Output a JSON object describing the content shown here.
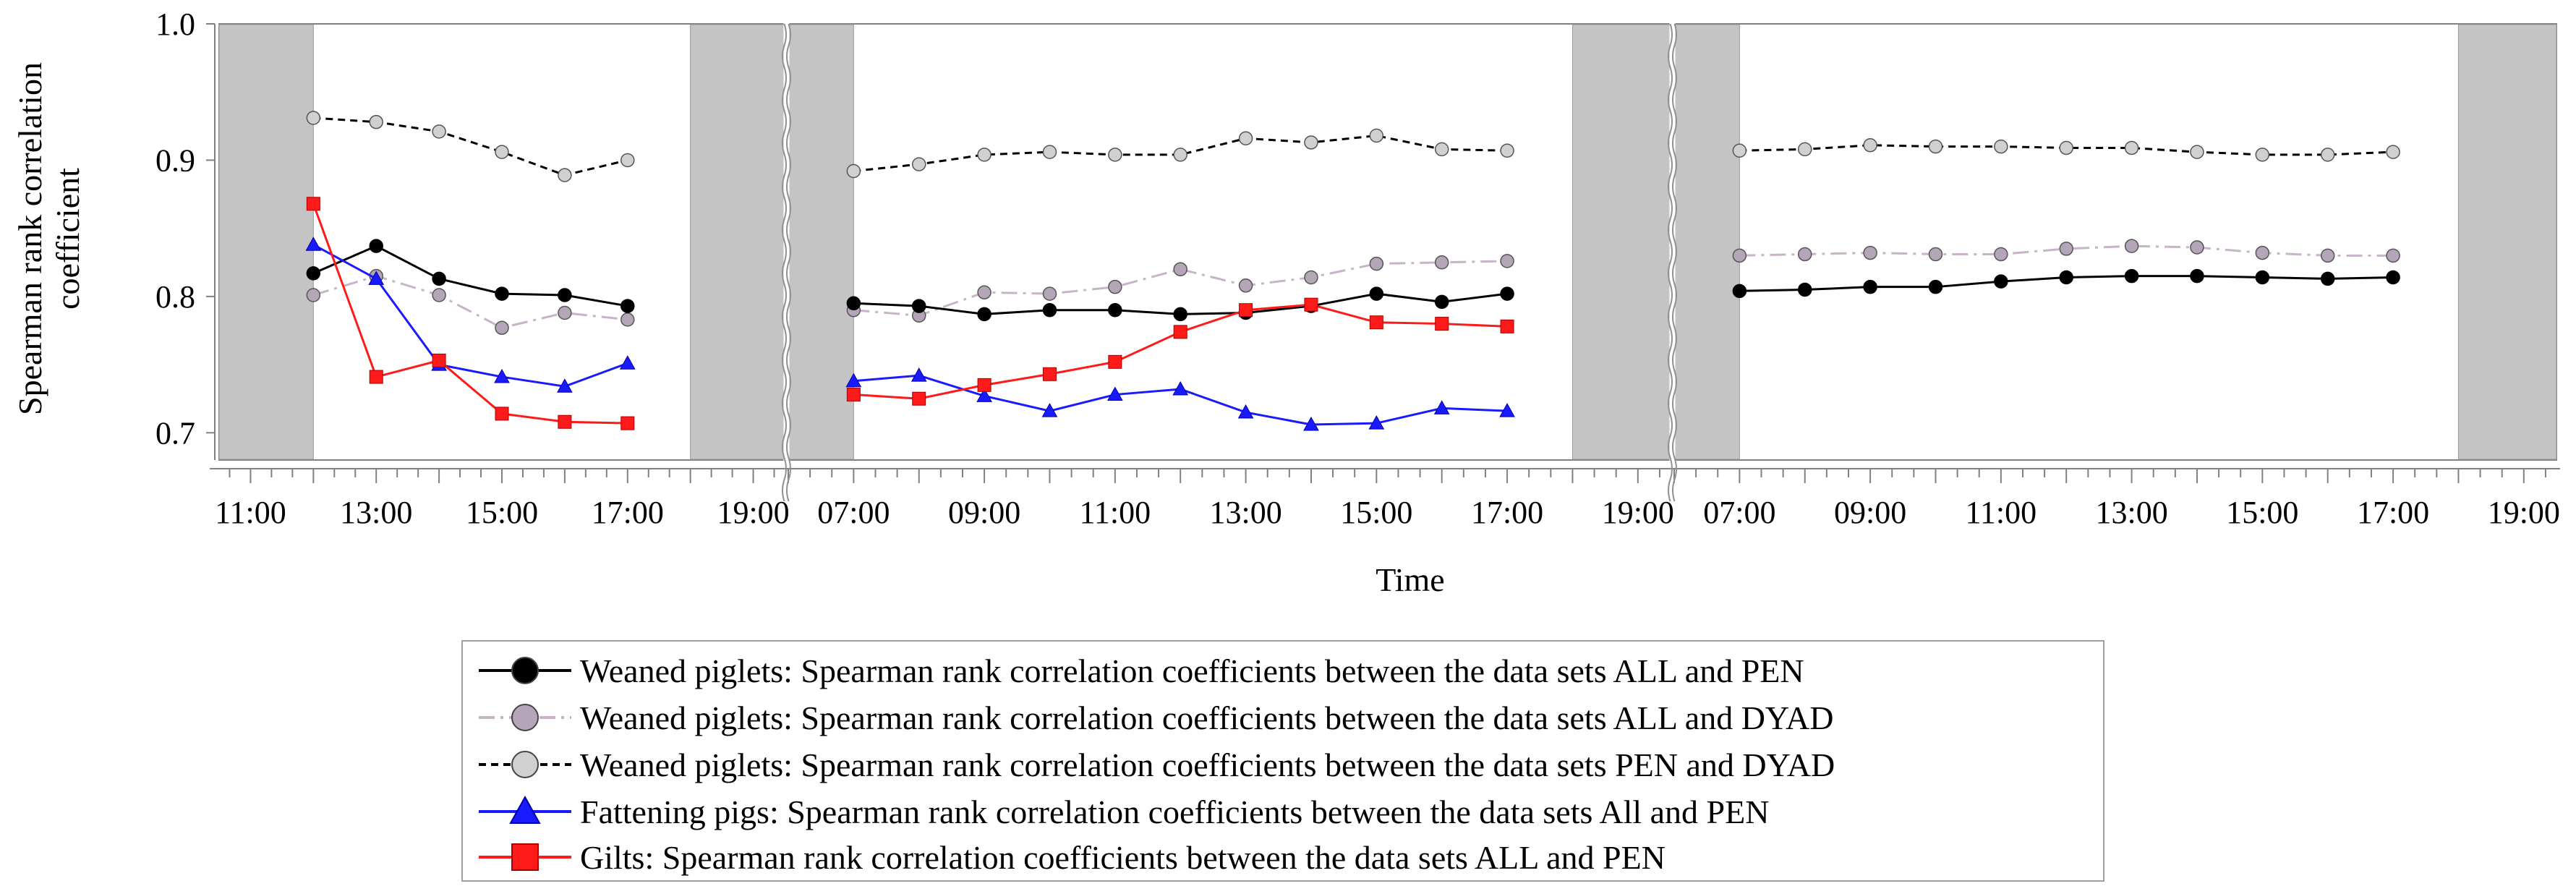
{
  "chart_data": {
    "type": "line",
    "ylabel": [
      "Spearman rank correlation",
      "coefficient"
    ],
    "xlabel": "Time",
    "ylim": [
      0.68,
      1.0
    ],
    "yticks": [
      "0.7",
      "0.8",
      "0.9",
      "1.0"
    ],
    "panels": [
      {
        "x_range_hours": [
          10.5,
          19.5
        ],
        "dark_periods": [
          [
            10.5,
            12.0
          ],
          [
            18.0,
            19.5
          ]
        ],
        "tick_labels": [
          "11:00",
          "13:00",
          "15:00",
          "17:00",
          "19:00"
        ],
        "series": [
          {
            "key": "pen_dyad",
            "x": [
              "12:00",
              "13:00",
              "14:00",
              "15:00",
              "16:00",
              "17:00"
            ],
            "values": [
              0.931,
              0.928,
              0.921,
              0.906,
              0.889,
              0.9
            ]
          },
          {
            "key": "all_dyad",
            "x": [
              "12:00",
              "13:00",
              "14:00",
              "15:00",
              "16:00",
              "17:00"
            ],
            "values": [
              0.801,
              0.815,
              0.801,
              0.777,
              0.788,
              0.783
            ]
          },
          {
            "key": "all_pen",
            "x": [
              "12:00",
              "13:00",
              "14:00",
              "15:00",
              "16:00",
              "17:00"
            ],
            "values": [
              0.817,
              0.837,
              0.813,
              0.802,
              0.801,
              0.793
            ]
          },
          {
            "key": "fattening",
            "x": [
              "12:00",
              "13:00",
              "14:00",
              "15:00",
              "16:00",
              "17:00"
            ],
            "values": [
              0.838,
              0.813,
              0.75,
              0.741,
              0.734,
              0.751
            ]
          },
          {
            "key": "gilts",
            "x": [
              "12:00",
              "13:00",
              "14:00",
              "15:00",
              "16:00",
              "17:00"
            ],
            "values": [
              0.868,
              0.741,
              0.753,
              0.714,
              0.708,
              0.707
            ]
          }
        ]
      },
      {
        "x_range_hours": [
          6.0,
          19.5
        ],
        "dark_periods": [
          [
            6.0,
            7.0
          ],
          [
            18.0,
            19.5
          ]
        ],
        "tick_labels": [
          "07:00",
          "09:00",
          "11:00",
          "13:00",
          "15:00",
          "17:00",
          "19:00"
        ],
        "series": [
          {
            "key": "pen_dyad",
            "x": [
              "07:00",
              "08:00",
              "09:00",
              "10:00",
              "11:00",
              "12:00",
              "13:00",
              "14:00",
              "15:00",
              "16:00",
              "17:00"
            ],
            "values": [
              0.892,
              0.897,
              0.904,
              0.906,
              0.904,
              0.904,
              0.916,
              0.913,
              0.918,
              0.908,
              0.907
            ]
          },
          {
            "key": "all_dyad",
            "x": [
              "07:00",
              "08:00",
              "09:00",
              "10:00",
              "11:00",
              "12:00",
              "13:00",
              "14:00",
              "15:00",
              "16:00",
              "17:00"
            ],
            "values": [
              0.79,
              0.786,
              0.803,
              0.802,
              0.807,
              0.82,
              0.808,
              0.814,
              0.824,
              0.825,
              0.826
            ]
          },
          {
            "key": "all_pen",
            "x": [
              "07:00",
              "08:00",
              "09:00",
              "10:00",
              "11:00",
              "12:00",
              "13:00",
              "14:00",
              "15:00",
              "16:00",
              "17:00"
            ],
            "values": [
              0.795,
              0.793,
              0.787,
              0.79,
              0.79,
              0.787,
              0.788,
              0.793,
              0.802,
              0.796,
              0.802
            ]
          },
          {
            "key": "fattening",
            "x": [
              "07:00",
              "08:00",
              "09:00",
              "10:00",
              "11:00",
              "12:00",
              "13:00",
              "14:00",
              "15:00",
              "16:00",
              "17:00"
            ],
            "values": [
              0.738,
              0.742,
              0.727,
              0.716,
              0.728,
              0.732,
              0.715,
              0.706,
              0.707,
              0.718,
              0.716
            ]
          },
          {
            "key": "gilts",
            "x": [
              "07:00",
              "08:00",
              "09:00",
              "10:00",
              "11:00",
              "12:00",
              "13:00",
              "14:00",
              "15:00",
              "16:00",
              "17:00"
            ],
            "values": [
              0.728,
              0.725,
              0.735,
              0.743,
              0.752,
              0.774,
              0.79,
              0.794,
              0.781,
              0.78,
              0.778
            ]
          }
        ]
      },
      {
        "x_range_hours": [
          6.0,
          19.5
        ],
        "dark_periods": [
          [
            6.0,
            7.0
          ],
          [
            18.0,
            19.5
          ]
        ],
        "tick_labels": [
          "07:00",
          "09:00",
          "11:00",
          "13:00",
          "15:00",
          "17:00",
          "19:00"
        ],
        "series": [
          {
            "key": "pen_dyad",
            "x": [
              "07:00",
              "08:00",
              "09:00",
              "10:00",
              "11:00",
              "12:00",
              "13:00",
              "14:00",
              "15:00",
              "16:00",
              "17:00"
            ],
            "values": [
              0.907,
              0.908,
              0.911,
              0.91,
              0.91,
              0.909,
              0.909,
              0.906,
              0.904,
              0.904,
              0.906
            ]
          },
          {
            "key": "all_dyad",
            "x": [
              "07:00",
              "08:00",
              "09:00",
              "10:00",
              "11:00",
              "12:00",
              "13:00",
              "14:00",
              "15:00",
              "16:00",
              "17:00"
            ],
            "values": [
              0.83,
              0.831,
              0.832,
              0.831,
              0.831,
              0.835,
              0.837,
              0.836,
              0.832,
              0.83,
              0.83
            ]
          },
          {
            "key": "all_pen",
            "x": [
              "07:00",
              "08:00",
              "09:00",
              "10:00",
              "11:00",
              "12:00",
              "13:00",
              "14:00",
              "15:00",
              "16:00",
              "17:00"
            ],
            "values": [
              0.804,
              0.805,
              0.807,
              0.807,
              0.811,
              0.814,
              0.815,
              0.815,
              0.814,
              0.813,
              0.814
            ]
          }
        ]
      }
    ],
    "legend": [
      {
        "key": "all_pen",
        "label": "Weaned piglets: Spearman rank correlation coefficients between the data sets ALL and PEN",
        "color": "#000000",
        "marker": "circle",
        "marker_fill": "#000000",
        "line_style": "solid"
      },
      {
        "key": "all_dyad",
        "label": "Weaned piglets: Spearman rank correlation coefficients between the data sets ALL and DYAD",
        "color": "#c8b4c8",
        "marker": "circle",
        "marker_fill": "#b4a5b9",
        "line_style": "dash-dot"
      },
      {
        "key": "pen_dyad",
        "label": "Weaned piglets: Spearman rank correlation coefficients between the data sets PEN and DYAD",
        "color": "#000000",
        "marker": "circle",
        "marker_fill": "#d0d0d0",
        "line_style": "dashed"
      },
      {
        "key": "fattening",
        "label": "Fattening pigs: Spearman rank correlation coefficients between the data sets All and PEN",
        "color": "#1a1aff",
        "marker": "triangle",
        "marker_fill": "#1a1aff",
        "line_style": "solid"
      },
      {
        "key": "gilts",
        "label": "Gilts: Spearman rank correlation coefficients between the data sets ALL and PEN",
        "color": "#ff1a1a",
        "marker": "square",
        "marker_fill": "#ff1a1a",
        "line_style": "solid"
      }
    ],
    "legend_position": "bottom",
    "dark_period_color": "#c4c4c4"
  }
}
